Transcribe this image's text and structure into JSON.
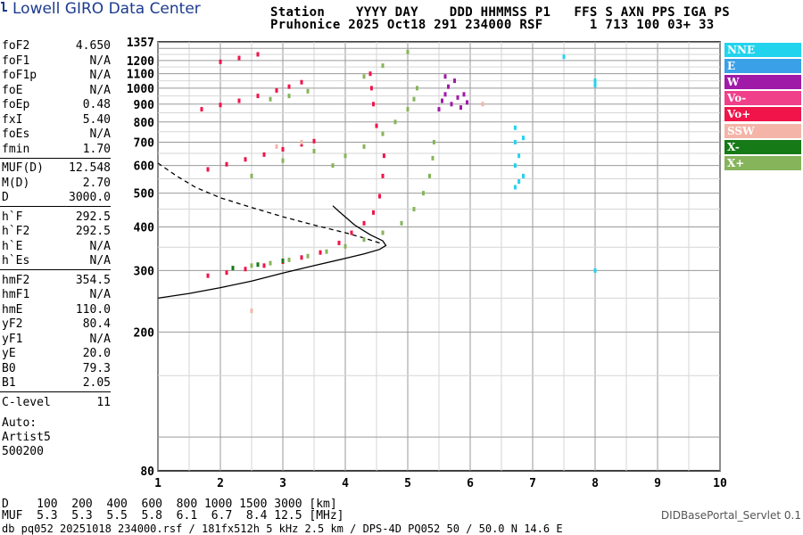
{
  "header": {
    "logo_text": "Lowell GIRO Data Center",
    "line1": "Station    YYYY DAY    DDD HHMMSS P1   FFS S AXN PPS IGA PS",
    "line2": "Pruhonice 2025 Oct18 291 234000 RSF      1 713 100 03+ 33"
  },
  "params": [
    {
      "name": "foF2",
      "value": "4.650"
    },
    {
      "name": "foF1",
      "value": "N/A"
    },
    {
      "name": "foF1p",
      "value": "N/A"
    },
    {
      "name": "foE",
      "value": "N/A"
    },
    {
      "name": "foEp",
      "value": "0.48"
    },
    {
      "name": "fxI",
      "value": "5.40"
    },
    {
      "name": "foEs",
      "value": "N/A"
    },
    {
      "name": "fmin",
      "value": "1.70"
    },
    {
      "name": "MUF(D)",
      "value": "12.548"
    },
    {
      "name": "M(D)",
      "value": "2.70"
    },
    {
      "name": "D",
      "value": "3000.0"
    },
    {
      "name": "h`F",
      "value": "292.5"
    },
    {
      "name": "h`F2",
      "value": "292.5"
    },
    {
      "name": "h`E",
      "value": "N/A"
    },
    {
      "name": "h`Es",
      "value": "N/A"
    },
    {
      "name": "hmF2",
      "value": "354.5"
    },
    {
      "name": "hmF1",
      "value": "N/A"
    },
    {
      "name": "hmE",
      "value": "110.0"
    },
    {
      "name": "yF2",
      "value": "80.4"
    },
    {
      "name": "yF1",
      "value": "N/A"
    },
    {
      "name": "yE",
      "value": "20.0"
    },
    {
      "name": "B0",
      "value": "79.3"
    },
    {
      "name": "B1",
      "value": "2.05"
    },
    {
      "name": "C-level",
      "value": "11"
    }
  ],
  "auto": {
    "line1": "Auto:",
    "line2": "Artist5",
    "line3": "500200"
  },
  "legend": [
    {
      "label": "NNE",
      "color": "#22d3ee"
    },
    {
      "label": "E",
      "color": "#3aa0e8"
    },
    {
      "label": "W",
      "color": "#a01aa8"
    },
    {
      "label": "Vo-",
      "color": "#f0408a"
    },
    {
      "label": "Vo+",
      "color": "#f0144a"
    },
    {
      "label": "SSW",
      "color": "#f4b4a8"
    },
    {
      "label": "X-",
      "color": "#167a16"
    },
    {
      "label": "X+",
      "color": "#86b45a"
    }
  ],
  "footer": {
    "d_line": "D    100  200  400  600  800 1000 1500 3000 [km]",
    "muf_line": "MUF  5.3  5.3  5.5  5.8  6.1  6.7  8.4 12.5 [MHz]",
    "db_line": "db pq052 20251018 234000.rsf / 181fx512h 5 kHz 2.5 km / DPS-4D PQ052 50 / 50.0 N 14.6 E",
    "servlet": "DIDBasePortal_Servlet 0.1"
  },
  "chart_data": {
    "type": "scatter",
    "title": "",
    "xlabel": "",
    "ylabel": "",
    "xlim": [
      1,
      10
    ],
    "ylim": [
      80,
      1357
    ],
    "y_scale": "log",
    "x_ticks": [
      1,
      2,
      3,
      4,
      5,
      6,
      7,
      8,
      9,
      10
    ],
    "y_ticks": [
      80,
      200,
      300,
      400,
      500,
      600,
      700,
      800,
      900,
      1000,
      1100,
      1200,
      1357
    ],
    "grid": true,
    "legend_position": "right",
    "series": [
      {
        "name": "X+",
        "color": "#86b45a",
        "points": [
          [
            2.5,
            310
          ],
          [
            2.8,
            315
          ],
          [
            3.1,
            322
          ],
          [
            3.4,
            330
          ],
          [
            3.7,
            340
          ],
          [
            4.0,
            352
          ],
          [
            4.3,
            368
          ],
          [
            4.6,
            385
          ],
          [
            4.9,
            410
          ],
          [
            5.1,
            450
          ],
          [
            5.25,
            500
          ],
          [
            5.35,
            560
          ],
          [
            5.4,
            630
          ],
          [
            5.42,
            700
          ],
          [
            3.8,
            600
          ],
          [
            4.0,
            640
          ],
          [
            4.3,
            680
          ],
          [
            4.6,
            740
          ],
          [
            4.8,
            800
          ],
          [
            5.0,
            870
          ],
          [
            5.1,
            930
          ],
          [
            5.15,
            1000
          ],
          [
            2.5,
            560
          ],
          [
            3.0,
            620
          ],
          [
            3.5,
            660
          ],
          [
            2.8,
            930
          ],
          [
            3.1,
            950
          ],
          [
            3.4,
            980
          ],
          [
            4.3,
            1080
          ],
          [
            4.6,
            1160
          ],
          [
            5.0,
            1270
          ]
        ]
      },
      {
        "name": "Vo+",
        "color": "#f0144a",
        "points": [
          [
            1.8,
            290
          ],
          [
            2.1,
            296
          ],
          [
            2.4,
            303
          ],
          [
            2.7,
            310
          ],
          [
            3.0,
            318
          ],
          [
            3.3,
            327
          ],
          [
            3.6,
            338
          ],
          [
            3.9,
            360
          ],
          [
            4.1,
            385
          ],
          [
            4.3,
            410
          ],
          [
            4.45,
            440
          ],
          [
            4.55,
            490
          ],
          [
            4.6,
            560
          ],
          [
            4.62,
            640
          ],
          [
            4.5,
            780
          ],
          [
            4.45,
            900
          ],
          [
            4.42,
            1000
          ],
          [
            4.4,
            1100
          ],
          [
            1.8,
            585
          ],
          [
            2.1,
            605
          ],
          [
            2.4,
            625
          ],
          [
            2.7,
            645
          ],
          [
            3.0,
            668
          ],
          [
            3.3,
            690
          ],
          [
            3.5,
            705
          ],
          [
            1.7,
            870
          ],
          [
            2.0,
            895
          ],
          [
            2.3,
            920
          ],
          [
            2.6,
            950
          ],
          [
            2.9,
            985
          ],
          [
            3.1,
            1010
          ],
          [
            3.3,
            1040
          ],
          [
            2.0,
            1190
          ],
          [
            2.3,
            1220
          ],
          [
            2.6,
            1250
          ]
        ]
      },
      {
        "name": "W",
        "color": "#a01aa8",
        "points": [
          [
            5.5,
            870
          ],
          [
            5.55,
            920
          ],
          [
            5.6,
            960
          ],
          [
            5.65,
            1010
          ],
          [
            5.7,
            900
          ],
          [
            5.75,
            1050
          ],
          [
            5.8,
            940
          ],
          [
            5.85,
            880
          ],
          [
            5.9,
            960
          ],
          [
            5.95,
            910
          ],
          [
            5.6,
            1080
          ]
        ]
      },
      {
        "name": "NNE",
        "color": "#22d3ee",
        "points": [
          [
            6.72,
            520
          ],
          [
            6.72,
            600
          ],
          [
            6.72,
            700
          ],
          [
            6.72,
            770
          ],
          [
            6.78,
            540
          ],
          [
            6.78,
            640
          ],
          [
            6.85,
            560
          ],
          [
            6.85,
            720
          ],
          [
            8.0,
            300
          ],
          [
            8.0,
            1020
          ],
          [
            8.0,
            1050
          ],
          [
            7.5,
            1230
          ]
        ]
      },
      {
        "name": "SSW",
        "color": "#f4b4a8",
        "points": [
          [
            2.9,
            680
          ],
          [
            3.3,
            700
          ],
          [
            2.5,
            230
          ],
          [
            6.2,
            900
          ]
        ]
      },
      {
        "name": "X-",
        "color": "#167a16",
        "points": [
          [
            2.2,
            305
          ],
          [
            2.6,
            312
          ],
          [
            3.0,
            320
          ]
        ]
      }
    ],
    "annotations": [
      {
        "type": "solid_profile",
        "points": [
          [
            1.0,
            250
          ],
          [
            1.5,
            258
          ],
          [
            2.0,
            268
          ],
          [
            2.5,
            280
          ],
          [
            3.0,
            295
          ],
          [
            3.5,
            310
          ],
          [
            4.0,
            325
          ],
          [
            4.3,
            335
          ],
          [
            4.55,
            345
          ],
          [
            4.65,
            354
          ],
          [
            4.6,
            365
          ],
          [
            4.4,
            380
          ],
          [
            4.15,
            405
          ],
          [
            3.95,
            435
          ],
          [
            3.8,
            460
          ]
        ]
      },
      {
        "type": "dashed_curve",
        "points": [
          [
            1.0,
            610
          ],
          [
            1.3,
            560
          ],
          [
            1.6,
            520
          ],
          [
            2.0,
            485
          ],
          [
            2.5,
            455
          ],
          [
            3.0,
            428
          ],
          [
            3.5,
            405
          ],
          [
            4.0,
            385
          ],
          [
            4.3,
            372
          ],
          [
            4.55,
            360
          ]
        ]
      }
    ]
  }
}
